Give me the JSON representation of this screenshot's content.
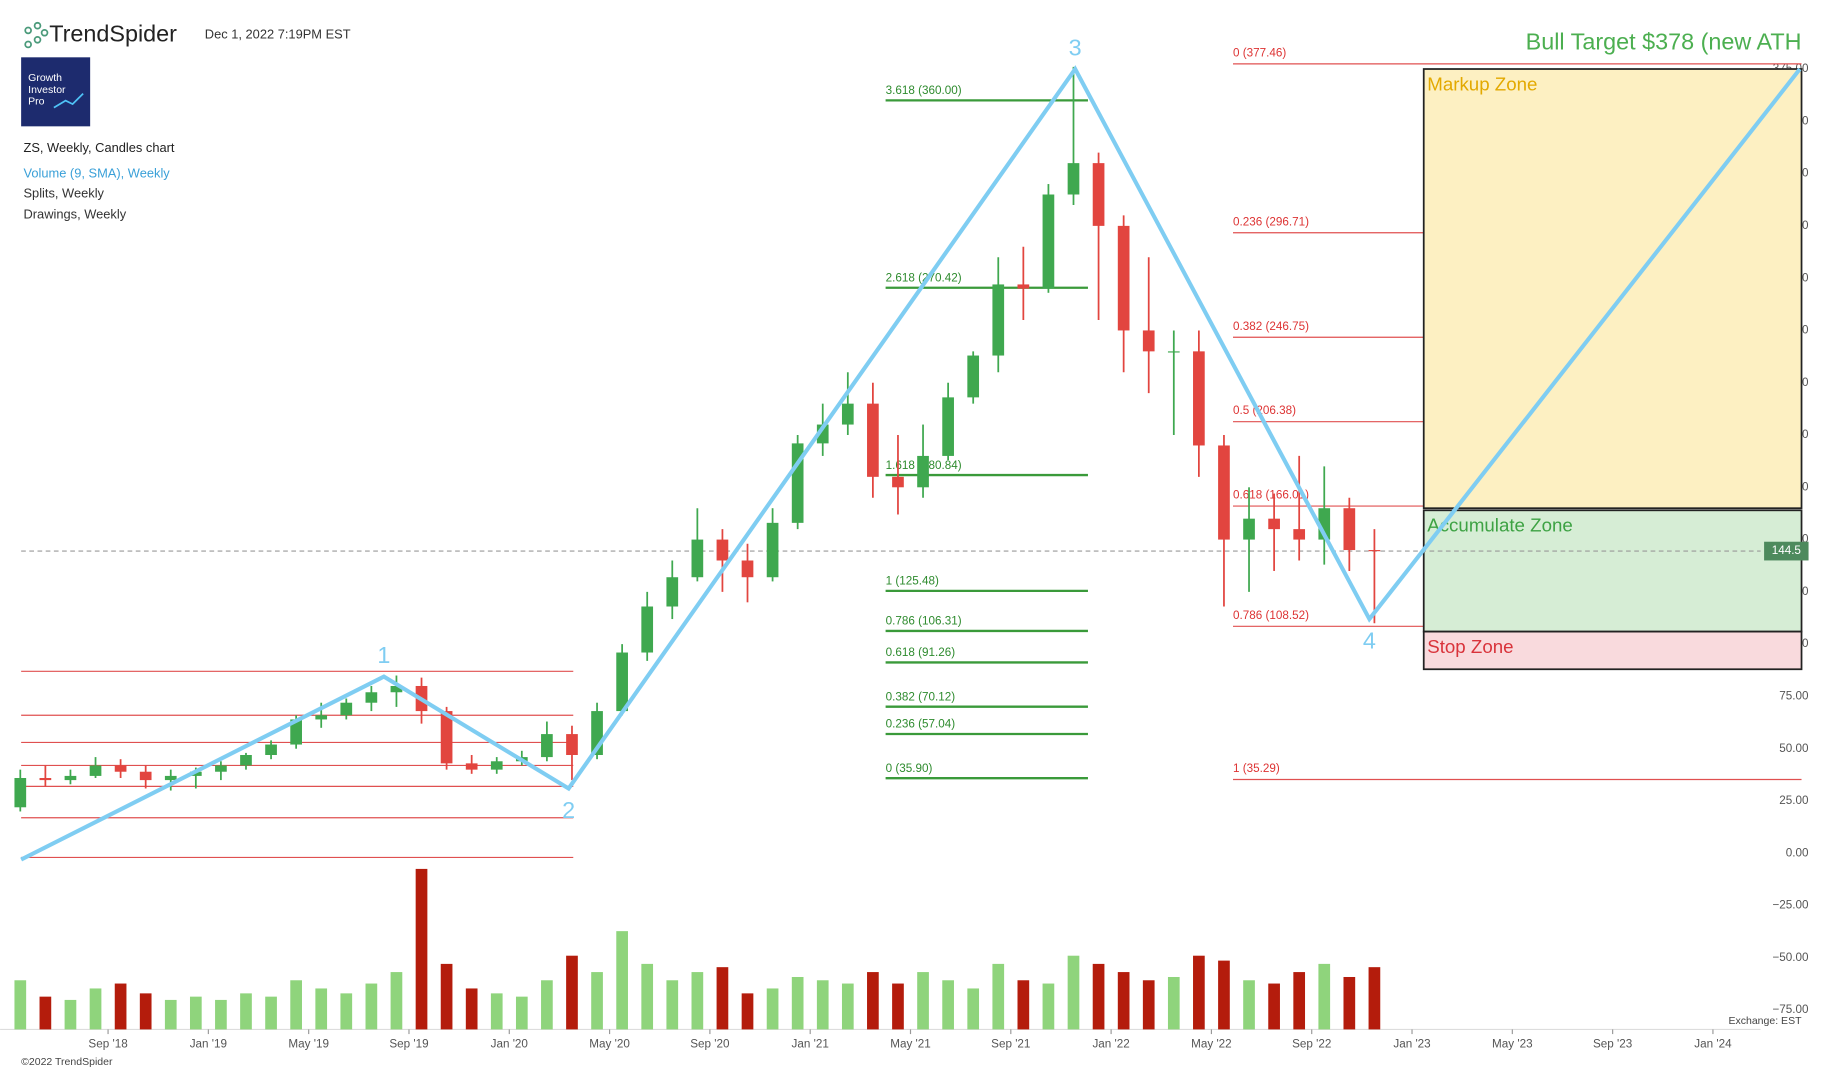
{
  "header": {
    "brand": "TrendSpider",
    "timestamp": "Dec 1, 2022 7:19PM EST",
    "logo": [
      "Growth",
      "Investor",
      "Pro"
    ],
    "legend": [
      "ZS, Weekly, Candles chart",
      "Volume (9, SMA), Weekly",
      "Splits, Weekly",
      "Drawings, Weekly"
    ],
    "footer": "©2022 TrendSpider",
    "exchange": "Exchange: EST"
  },
  "chart_data": {
    "type": "candlestick",
    "title": "Bull Target $378 (new ATH",
    "up_color": "#3fa84f",
    "down_color": "#e2453f",
    "volume_up_color": "#8fd47c",
    "volume_down_color": "#b41c0c",
    "wave_color": "#7fcdf2",
    "candles": {
      "dates": [
        "2018-05",
        "2018-06",
        "2018-07",
        "2018-08",
        "2018-09",
        "2018-10",
        "2018-11",
        "2018-12",
        "2019-01",
        "2019-02",
        "2019-03",
        "2019-04",
        "2019-05",
        "2019-06",
        "2019-07",
        "2019-08",
        "2019-09",
        "2019-10",
        "2019-11",
        "2019-12",
        "2020-01",
        "2020-02",
        "2020-03",
        "2020-04",
        "2020-05",
        "2020-06",
        "2020-07",
        "2020-08",
        "2020-09",
        "2020-10",
        "2020-11",
        "2020-12",
        "2021-01",
        "2021-02",
        "2021-03",
        "2021-04",
        "2021-05",
        "2021-06",
        "2021-07",
        "2021-08",
        "2021-09",
        "2021-10",
        "2021-11",
        "2021-12",
        "2022-01",
        "2022-02",
        "2022-03",
        "2022-04",
        "2022-05",
        "2022-06",
        "2022-07",
        "2022-08",
        "2022-09",
        "2022-10",
        "2022-11"
      ],
      "open": [
        22,
        36,
        35,
        37,
        42,
        39,
        35,
        37,
        39,
        42,
        47,
        52,
        64,
        66,
        72,
        77,
        80,
        68,
        43,
        40,
        44,
        46,
        57,
        47,
        68,
        96,
        118,
        132,
        150,
        140,
        132,
        158,
        196,
        205,
        215,
        180,
        175,
        190,
        218,
        238,
        272,
        270,
        315,
        330,
        300,
        250,
        240,
        240,
        195,
        150,
        160,
        155,
        150,
        165,
        145
      ],
      "high": [
        40,
        42,
        40,
        46,
        45,
        42,
        40,
        41,
        44,
        48,
        54,
        66,
        72,
        74,
        80,
        85,
        84,
        70,
        47,
        46,
        49,
        63,
        61,
        72,
        100,
        125,
        140,
        165,
        155,
        148,
        165,
        200,
        215,
        230,
        225,
        200,
        205,
        225,
        240,
        285,
        290,
        320,
        376,
        335,
        305,
        285,
        250,
        250,
        200,
        175,
        172,
        190,
        185,
        170,
        155
      ],
      "low": [
        20,
        32,
        33,
        36,
        36,
        31,
        30,
        31,
        35,
        40,
        45,
        50,
        60,
        64,
        68,
        70,
        62,
        40,
        38,
        38,
        42,
        44,
        35,
        45,
        66,
        92,
        112,
        130,
        125,
        120,
        130,
        155,
        190,
        200,
        170,
        162,
        170,
        188,
        215,
        230,
        255,
        268,
        310,
        255,
        230,
        220,
        200,
        180,
        118,
        125,
        135,
        140,
        138,
        135,
        110
      ],
      "close": [
        36,
        35,
        37,
        42,
        39,
        35,
        37,
        39,
        42,
        47,
        52,
        64,
        66,
        72,
        77,
        80,
        68,
        43,
        40,
        44,
        46,
        57,
        47,
        68,
        96,
        118,
        132,
        150,
        140,
        132,
        158,
        196,
        205,
        215,
        180,
        175,
        190,
        218,
        238,
        272,
        270,
        315,
        330,
        300,
        250,
        240,
        240,
        195,
        150,
        160,
        155,
        150,
        165,
        145,
        144.5
      ]
    },
    "volume": [
      30,
      20,
      18,
      25,
      28,
      22,
      18,
      20,
      18,
      22,
      20,
      30,
      25,
      22,
      28,
      35,
      98,
      40,
      25,
      22,
      20,
      30,
      45,
      35,
      60,
      40,
      30,
      35,
      38,
      22,
      25,
      32,
      30,
      28,
      35,
      28,
      35,
      30,
      25,
      40,
      30,
      28,
      45,
      40,
      35,
      30,
      32,
      45,
      42,
      30,
      28,
      35,
      40,
      32,
      38
    ],
    "vlim": [
      0,
      100
    ],
    "last_price": {
      "value": 144.5,
      "label": "144.5"
    },
    "xlim": [
      "2018-05-17",
      "2024-02-28"
    ],
    "xticks": [
      "Sep '18",
      "Jan '19",
      "May '19",
      "Sep '19",
      "Jan '20",
      "May '20",
      "Sep '20",
      "Jan '21",
      "May '21",
      "Sep '21",
      "Jan '22",
      "May '22",
      "Sep '22",
      "Jan '23",
      "May '23",
      "Sep '23",
      "Jan '24"
    ],
    "ylim": [
      -87,
      408
    ],
    "yticks": [
      {
        "value": -75,
        "label": "−75.00"
      },
      {
        "value": -50,
        "label": "−50.00"
      },
      {
        "value": -25,
        "label": "−25.00"
      },
      {
        "value": 0,
        "label": "0.00"
      },
      {
        "value": 25,
        "label": "25.00"
      },
      {
        "value": 50,
        "label": "50.00"
      },
      {
        "value": 75,
        "label": "75.00"
      },
      {
        "value": 100,
        "label": "100.00"
      },
      {
        "value": 125,
        "label": "125.00"
      },
      {
        "value": 150,
        "label": "150.00"
      },
      {
        "value": 175,
        "label": "175.00"
      },
      {
        "value": 200,
        "label": "200.00"
      },
      {
        "value": 225,
        "label": "225.00"
      },
      {
        "value": 250,
        "label": "250.00"
      },
      {
        "value": 275,
        "label": "275.00"
      },
      {
        "value": 300,
        "label": "300.00"
      },
      {
        "value": 325,
        "label": "325.00"
      },
      {
        "value": 350,
        "label": "350.00"
      },
      {
        "value": 375,
        "label": "375.00"
      }
    ],
    "support_lines": [
      87,
      66,
      53,
      42,
      32,
      17,
      -2
    ],
    "fib_extension": [
      {
        "value": 360.0,
        "label": "3.618 (360.00)"
      },
      {
        "value": 270.42,
        "label": "2.618 (270.42)"
      },
      {
        "value": 180.84,
        "label": "1.618 (180.84)"
      },
      {
        "value": 125.48,
        "label": "1 (125.48)"
      },
      {
        "value": 106.31,
        "label": "0.786 (106.31)"
      },
      {
        "value": 91.26,
        "label": "0.618 (91.26)"
      },
      {
        "value": 70.12,
        "label": "0.382 (70.12)"
      },
      {
        "value": 57.04,
        "label": "0.236 (57.04)"
      },
      {
        "value": 35.9,
        "label": "0 (35.90)"
      }
    ],
    "fib_retracement": [
      {
        "value": 377.46,
        "label": "0 (377.46)"
      },
      {
        "value": 296.71,
        "label": "0.236 (296.71)"
      },
      {
        "value": 246.75,
        "label": "0.382 (246.75)"
      },
      {
        "value": 206.38,
        "label": "0.5 (206.38)"
      },
      {
        "value": 166.01,
        "label": "0.618 (166.01)"
      },
      {
        "value": 108.52,
        "label": "0.786 (108.52)"
      },
      {
        "value": 35.29,
        "label": "1 (35.29)"
      }
    ],
    "wave": {
      "dates": [
        "2018-05-17",
        "2019-08-01",
        "2020-03-12",
        "2021-11-18",
        "2022-11-10",
        "2024-04-15"
      ],
      "prices": [
        -3,
        84.5,
        31,
        375,
        112,
        375
      ],
      "labels": [
        null,
        "1",
        "2",
        "3",
        "4",
        null
      ]
    },
    "zones": [
      {
        "name": "Markup Zone",
        "low": 165,
        "high": 375,
        "fill": "#fdf0c2",
        "color": "#e3a900"
      },
      {
        "name": "Accumulate Zone",
        "low": 106,
        "high": 164,
        "fill": "#d6edd5",
        "color": "#3da243"
      },
      {
        "name": "Stop Zone",
        "low": 88,
        "high": 106,
        "fill": "#f9dadd",
        "color": "#d9333b"
      }
    ],
    "zone_start": "2023-01-15"
  }
}
